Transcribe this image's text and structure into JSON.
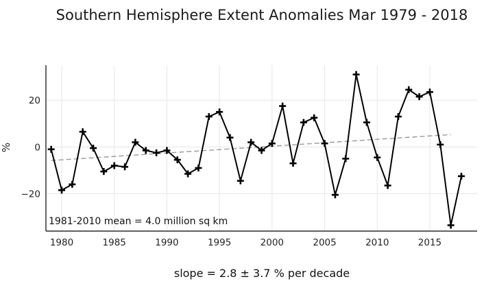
{
  "chart_data": {
    "type": "line",
    "title": "Southern Hemisphere Extent Anomalies Mar 1979 - 2018",
    "xlabel": "slope = 2.8 ± 3.7 % per decade",
    "ylabel": "%",
    "annotation": "1981-2010 mean = 4.0 million sq km",
    "xlim": [
      1978.5,
      2019.5
    ],
    "ylim": [
      -36,
      35
    ],
    "x_ticks": [
      1980,
      1985,
      1990,
      1995,
      2000,
      2005,
      2010,
      2015
    ],
    "y_ticks": [
      -20,
      0,
      20
    ],
    "y_tick_labels": [
      "−20",
      "0",
      "20"
    ],
    "grid": true,
    "series": [
      {
        "color": "#000000",
        "marker": "plus",
        "x": [
          1979,
          1980,
          1981,
          1982,
          1983,
          1984,
          1985,
          1986,
          1987,
          1988,
          1989,
          1990,
          1991,
          1992,
          1993,
          1994,
          1995,
          1996,
          1997,
          1998,
          1999,
          2000,
          2001,
          2002,
          2003,
          2004,
          2005,
          2006,
          2007,
          2008,
          2009,
          2010,
          2011,
          2012,
          2013,
          2014,
          2015,
          2016,
          2017,
          2018
        ],
        "values": [
          -1,
          -18.5,
          -16,
          6.5,
          -0.5,
          -10.5,
          -8,
          -8.5,
          2,
          -1.5,
          -2.5,
          -1.5,
          -5.5,
          -11.5,
          -9,
          13,
          15,
          4,
          -14.5,
          2,
          -1.5,
          1.5,
          17.5,
          -7,
          10.5,
          12.5,
          1.5,
          -20.5,
          -5,
          31,
          10.5,
          -4.5,
          -16.5,
          13,
          24.5,
          21.5,
          23.5,
          1,
          -33.5,
          -12.5
        ]
      }
    ],
    "trend": {
      "color": "#999999",
      "style": "dashed",
      "x": [
        1979,
        2017
      ],
      "values": [
        -5.8,
        5.3
      ]
    }
  }
}
